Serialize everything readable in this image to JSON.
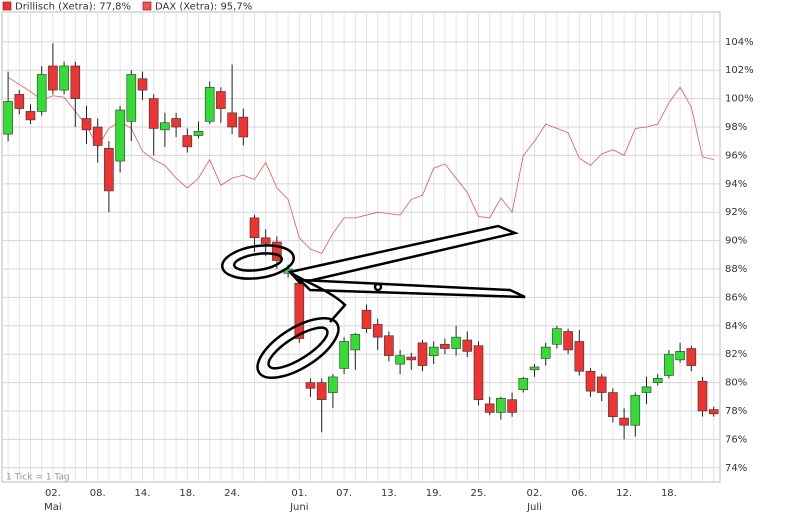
{
  "chart_data": {
    "type": "candlestick",
    "categories": [
      null,
      null,
      null,
      null,
      "02.",
      null,
      null,
      null,
      "08.",
      null,
      null,
      null,
      "14.",
      null,
      null,
      null,
      "18.",
      null,
      null,
      null,
      "24.",
      null,
      null,
      null,
      null,
      null,
      "01.",
      null,
      null,
      null,
      "07.",
      null,
      null,
      null,
      "13.",
      null,
      null,
      null,
      "19.",
      null,
      null,
      null,
      "25.",
      null,
      null,
      null,
      null,
      "02.",
      null,
      null,
      null,
      "06.",
      null,
      null,
      null,
      "12.",
      null,
      null,
      null,
      "18.",
      null,
      null,
      null,
      null
    ],
    "months": [
      null,
      null,
      null,
      null,
      "Mai",
      null,
      null,
      null,
      null,
      null,
      null,
      null,
      null,
      null,
      null,
      null,
      null,
      null,
      null,
      null,
      null,
      null,
      null,
      null,
      null,
      null,
      "Juni",
      null,
      null,
      null,
      null,
      null,
      null,
      null,
      null,
      null,
      null,
      null,
      null,
      null,
      null,
      null,
      null,
      null,
      null,
      null,
      null,
      "Juli",
      null,
      null,
      null,
      null,
      null,
      null,
      null,
      null,
      null,
      null,
      null,
      null,
      null,
      null,
      null,
      null
    ],
    "series": [
      {
        "name": "Drillisch (Xetra): 77,8%",
        "up_color": "#33dd33",
        "down_color": "#ee3333",
        "open": [
          97.5,
          100.3,
          99.1,
          99.1,
          102.3,
          100.6,
          102.3,
          98.6,
          98.0,
          96.5,
          95.6,
          98.4,
          101.4,
          100.0,
          97.8,
          98.6,
          97.4,
          97.4,
          98.4,
          100.5,
          99.0,
          98.7,
          91.6,
          90.2,
          89.9,
          87.7,
          87.0,
          80.0,
          80.0,
          79.3,
          81.0,
          82.3,
          85.1,
          84.1,
          83.3,
          81.3,
          81.8,
          82.8,
          81.9,
          82.7,
          82.4,
          83.0,
          82.6,
          78.5,
          77.9,
          78.8,
          79.5,
          80.9,
          81.7,
          82.7,
          83.6,
          82.9,
          80.8,
          80.4,
          79.3,
          77.5,
          77.0,
          79.3,
          80.0,
          80.5,
          81.6,
          82.4,
          80.1,
          78.1
        ],
        "high": [
          101.9,
          100.6,
          99.6,
          102.3,
          103.9,
          102.6,
          102.6,
          99.5,
          98.6,
          97.0,
          99.5,
          102.0,
          101.9,
          100.3,
          99.0,
          99.0,
          97.9,
          98.4,
          101.2,
          100.8,
          102.4,
          99.3,
          91.8,
          90.8,
          90.3,
          88.3,
          87.6,
          80.3,
          80.3,
          80.6,
          83.2,
          83.5,
          85.5,
          84.5,
          83.6,
          82.3,
          82.1,
          83.0,
          82.9,
          83.1,
          84.0,
          83.6,
          82.9,
          79.0,
          79.0,
          79.3,
          80.4,
          81.3,
          82.8,
          84.0,
          83.8,
          83.7,
          81.0,
          80.6,
          79.6,
          78.2,
          79.3,
          80.4,
          80.6,
          82.3,
          82.8,
          82.6,
          80.4,
          78.3
        ],
        "low": [
          97.0,
          98.9,
          98.2,
          98.8,
          100.3,
          100.3,
          98.0,
          96.8,
          95.5,
          92.0,
          94.8,
          97.0,
          99.9,
          96.0,
          96.6,
          97.3,
          96.2,
          97.2,
          98.2,
          98.3,
          97.5,
          96.7,
          89.2,
          88.9,
          88.0,
          87.4,
          82.8,
          79.0,
          76.5,
          78.2,
          80.6,
          80.9,
          83.5,
          82.3,
          81.5,
          80.6,
          80.9,
          80.8,
          81.3,
          82.0,
          81.9,
          81.8,
          78.4,
          77.7,
          77.4,
          77.6,
          79.3,
          80.4,
          81.2,
          82.4,
          82.0,
          80.5,
          79.0,
          78.7,
          77.2,
          76.0,
          76.2,
          78.5,
          79.8,
          80.3,
          81.4,
          80.8,
          77.6,
          77.6
        ],
        "close": [
          99.8,
          99.3,
          98.5,
          101.7,
          100.6,
          102.3,
          100.0,
          97.8,
          96.7,
          93.5,
          99.2,
          101.7,
          100.6,
          97.9,
          98.3,
          98.0,
          96.6,
          97.7,
          100.8,
          99.3,
          98.0,
          97.3,
          90.2,
          89.8,
          88.6,
          88.0,
          83.1,
          79.6,
          78.8,
          80.4,
          82.9,
          83.4,
          83.8,
          83.2,
          81.9,
          81.9,
          81.6,
          81.2,
          82.5,
          82.4,
          83.2,
          82.2,
          78.8,
          77.9,
          78.9,
          77.9,
          80.3,
          81.1,
          82.5,
          83.8,
          82.3,
          80.8,
          79.4,
          79.3,
          77.6,
          77.0,
          79.1,
          79.7,
          80.3,
          82.0,
          82.2,
          81.2,
          78.0,
          77.8
        ]
      },
      {
        "name": "DAX (Xetra): 95,7%",
        "type": "line",
        "color": "#ee5555",
        "values": [
          101.5,
          101.0,
          100.5,
          99.9,
          100.2,
          100.1,
          99.1,
          98.1,
          96.6,
          97.9,
          98.4,
          97.9,
          96.3,
          95.7,
          95.3,
          94.4,
          93.7,
          94.4,
          95.7,
          93.9,
          94.4,
          94.6,
          94.3,
          95.5,
          93.7,
          92.9,
          90.2,
          89.4,
          89.1,
          90.5,
          91.6,
          91.6,
          91.8,
          92.0,
          91.9,
          91.8,
          92.9,
          93.2,
          95.1,
          95.4,
          94.4,
          93.4,
          91.7,
          91.6,
          93.0,
          92.0,
          96.0,
          97.0,
          98.2,
          97.9,
          97.6,
          95.8,
          95.3,
          96.1,
          96.4,
          96.0,
          97.9,
          98.0,
          98.2,
          99.7,
          100.8,
          99.4,
          95.9,
          95.7
        ]
      }
    ],
    "ylim": [
      73,
      106.1
    ],
    "yticks": [
      {
        "value": 74,
        "label": "74%"
      },
      {
        "value": 76,
        "label": "76%"
      },
      {
        "value": 78,
        "label": "78%"
      },
      {
        "value": 80,
        "label": "80%"
      },
      {
        "value": 82,
        "label": "82%"
      },
      {
        "value": 84,
        "label": "84%"
      },
      {
        "value": 86,
        "label": "86%"
      },
      {
        "value": 88,
        "label": "88%"
      },
      {
        "value": 90,
        "label": "90%"
      },
      {
        "value": 92,
        "label": "92%"
      },
      {
        "value": 94,
        "label": "94%"
      },
      {
        "value": 96,
        "label": "96%"
      },
      {
        "value": 98,
        "label": "98%"
      },
      {
        "value": 100,
        "label": "100%"
      },
      {
        "value": 102,
        "label": "102%"
      },
      {
        "value": 104,
        "label": "104%"
      }
    ],
    "grid": true,
    "footnote": "1 Tick = 1 Tag"
  }
}
